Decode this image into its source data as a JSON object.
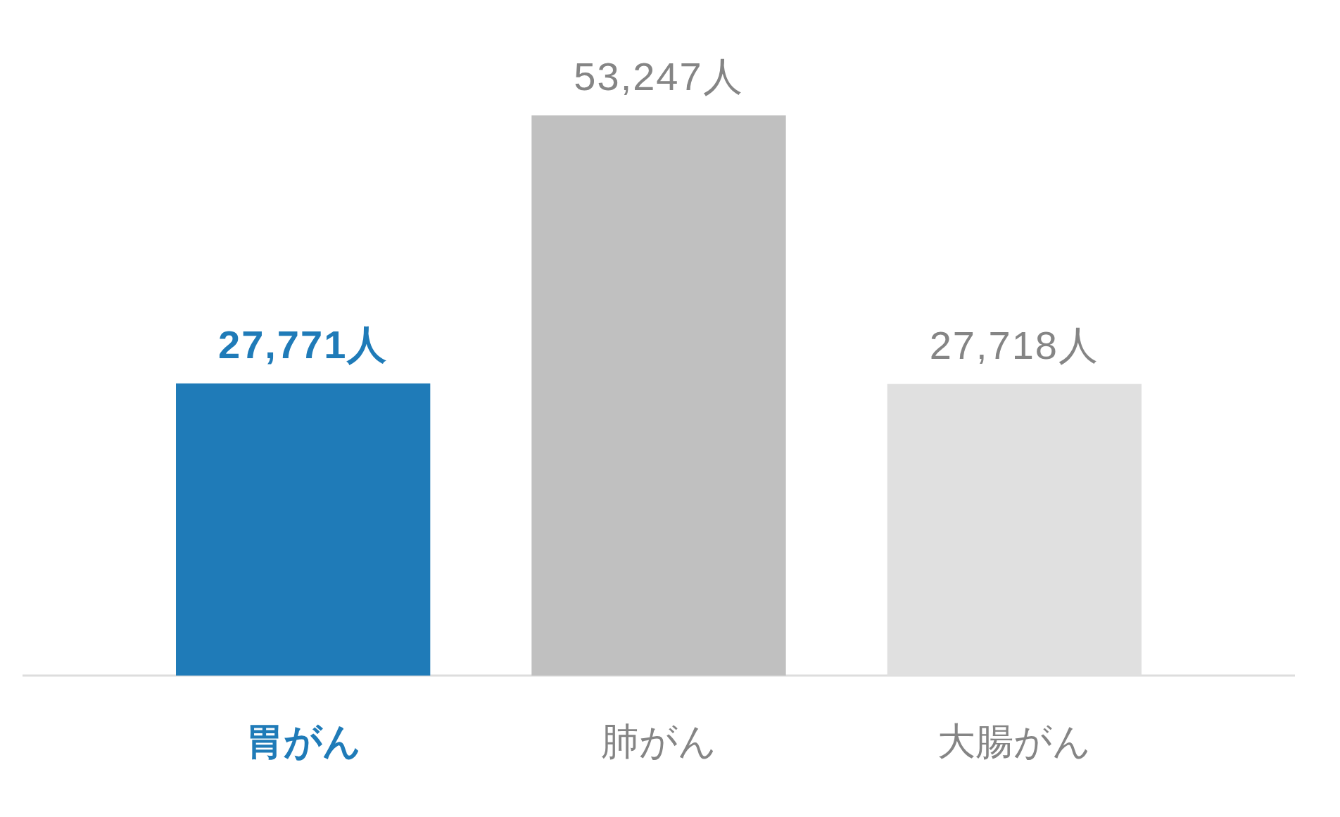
{
  "chart_data": {
    "type": "bar",
    "categories": [
      "胃がん",
      "肺がん",
      "大腸がん"
    ],
    "values": [
      27771,
      53247,
      27718
    ],
    "colors": [
      "#1f7bb8",
      "#c0c0c0",
      "#e0e0e0"
    ],
    "value_labels": [
      "27,771人",
      "53,247人",
      "27,718人"
    ]
  }
}
